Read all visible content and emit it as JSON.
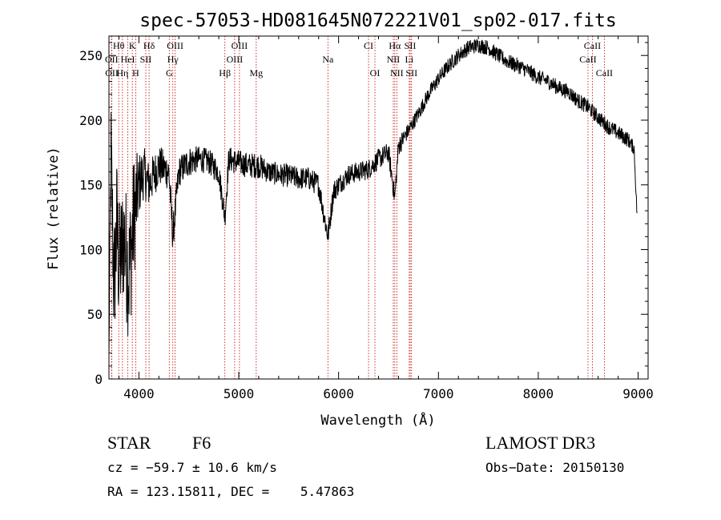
{
  "chart_data": {
    "type": "line",
    "title": "spec-57053-HD081645N072221V01_sp02-017.fits",
    "xlabel": "Wavelength (Å)",
    "ylabel": "Flux (relative)",
    "xlim": [
      3700,
      9100
    ],
    "ylim": [
      0,
      265
    ],
    "xticks": [
      4000,
      5000,
      6000,
      7000,
      8000,
      9000
    ],
    "yticks": [
      0,
      50,
      100,
      150,
      200,
      250
    ],
    "x_tick_labels": [
      "4000",
      "5000",
      "6000",
      "7000",
      "8000",
      "9000"
    ],
    "y_tick_labels": [
      "0",
      "50",
      "100",
      "150",
      "200",
      "250"
    ],
    "grid": false,
    "series": [
      {
        "name": "spectrum",
        "x": [
          3700,
          3720,
          3750,
          3780,
          3800,
          3850,
          3900,
          3950,
          4000,
          4050,
          4100,
          4200,
          4300,
          4340,
          4400,
          4500,
          4600,
          4700,
          4800,
          4861,
          4900,
          5000,
          5100,
          5200,
          5300,
          5400,
          5500,
          5600,
          5700,
          5800,
          5893,
          5950,
          6000,
          6100,
          6200,
          6300,
          6400,
          6500,
          6563,
          6600,
          6700,
          6800,
          6900,
          7000,
          7100,
          7200,
          7300,
          7400,
          7500,
          7600,
          7700,
          7800,
          7900,
          8000,
          8100,
          8200,
          8300,
          8400,
          8500,
          8600,
          8700,
          8800,
          8900,
          8960,
          8990
        ],
        "y": [
          20,
          175,
          70,
          120,
          85,
          110,
          80,
          125,
          150,
          160,
          150,
          165,
          160,
          110,
          160,
          168,
          170,
          168,
          160,
          125,
          170,
          167,
          165,
          165,
          160,
          158,
          157,
          155,
          155,
          150,
          110,
          145,
          150,
          158,
          160,
          162,
          170,
          175,
          140,
          180,
          192,
          205,
          220,
          232,
          242,
          250,
          256,
          258,
          256,
          250,
          245,
          242,
          238,
          233,
          230,
          225,
          222,
          215,
          210,
          202,
          195,
          190,
          185,
          178,
          125
        ],
        "noise": [
          0,
          45,
          50,
          55,
          50,
          50,
          55,
          50,
          25,
          20,
          18,
          16,
          14,
          14,
          12,
          12,
          10,
          10,
          10,
          10,
          10,
          10,
          10,
          10,
          9,
          9,
          9,
          9,
          9,
          9,
          9,
          9,
          8,
          8,
          8,
          8,
          8,
          8,
          8,
          8,
          6,
          6,
          6,
          6,
          6,
          6,
          6,
          6,
          6,
          6,
          6,
          6,
          6,
          6,
          6,
          6,
          6,
          6,
          6,
          6,
          6,
          6,
          6,
          5,
          5
        ]
      }
    ],
    "line_markers": [
      {
        "label": "Hθ",
        "wavelength": 3798,
        "row": 1
      },
      {
        "label": "K",
        "wavelength": 3934,
        "row": 1
      },
      {
        "label": "Hδ",
        "wavelength": 4102,
        "row": 1
      },
      {
        "label": "OIII",
        "wavelength": 4363,
        "row": 1
      },
      {
        "label": "OIII",
        "wavelength": 5007,
        "row": 1
      },
      {
        "label": "CI",
        "wavelength": 6300,
        "row": 1
      },
      {
        "label": "Hα",
        "wavelength": 6563,
        "row": 1
      },
      {
        "label": "SII",
        "wavelength": 6717,
        "row": 1
      },
      {
        "label": "CaII",
        "wavelength": 8542,
        "row": 1
      },
      {
        "label": "OII",
        "wavelength": 3727,
        "row": 2
      },
      {
        "label": "HeI",
        "wavelength": 3889,
        "row": 2
      },
      {
        "label": "SII",
        "wavelength": 4069,
        "row": 2
      },
      {
        "label": "Hγ",
        "wavelength": 4340,
        "row": 2
      },
      {
        "label": "OIII",
        "wavelength": 4959,
        "row": 2
      },
      {
        "label": "Na",
        "wavelength": 5893,
        "row": 2
      },
      {
        "label": "NII",
        "wavelength": 6548,
        "row": 2
      },
      {
        "label": "Li",
        "wavelength": 6708,
        "row": 2
      },
      {
        "label": "CaII",
        "wavelength": 8498,
        "row": 2
      },
      {
        "label": "OII",
        "wavelength": 3729,
        "row": 3
      },
      {
        "label": "Hη",
        "wavelength": 3835,
        "row": 3
      },
      {
        "label": "H",
        "wavelength": 3968,
        "row": 3
      },
      {
        "label": "G",
        "wavelength": 4304,
        "row": 3
      },
      {
        "label": "Hβ",
        "wavelength": 4861,
        "row": 3
      },
      {
        "label": "Mg",
        "wavelength": 5175,
        "row": 3
      },
      {
        "label": "OI",
        "wavelength": 6364,
        "row": 3
      },
      {
        "label": "NII",
        "wavelength": 6583,
        "row": 3
      },
      {
        "label": "SII",
        "wavelength": 6731,
        "row": 3
      },
      {
        "label": "CaII",
        "wavelength": 8662,
        "row": 3
      }
    ],
    "line_color": "#000000",
    "marker_color": "#c00000"
  },
  "info": {
    "object_class": "STAR",
    "subclass": "F6",
    "survey": "LAMOST DR3",
    "cz": "cz = −59.7 ± 10.6 km/s",
    "obs_date": "Obs−Date: 20150130",
    "coords": "RA = 123.15811, DEC =    5.47863"
  }
}
